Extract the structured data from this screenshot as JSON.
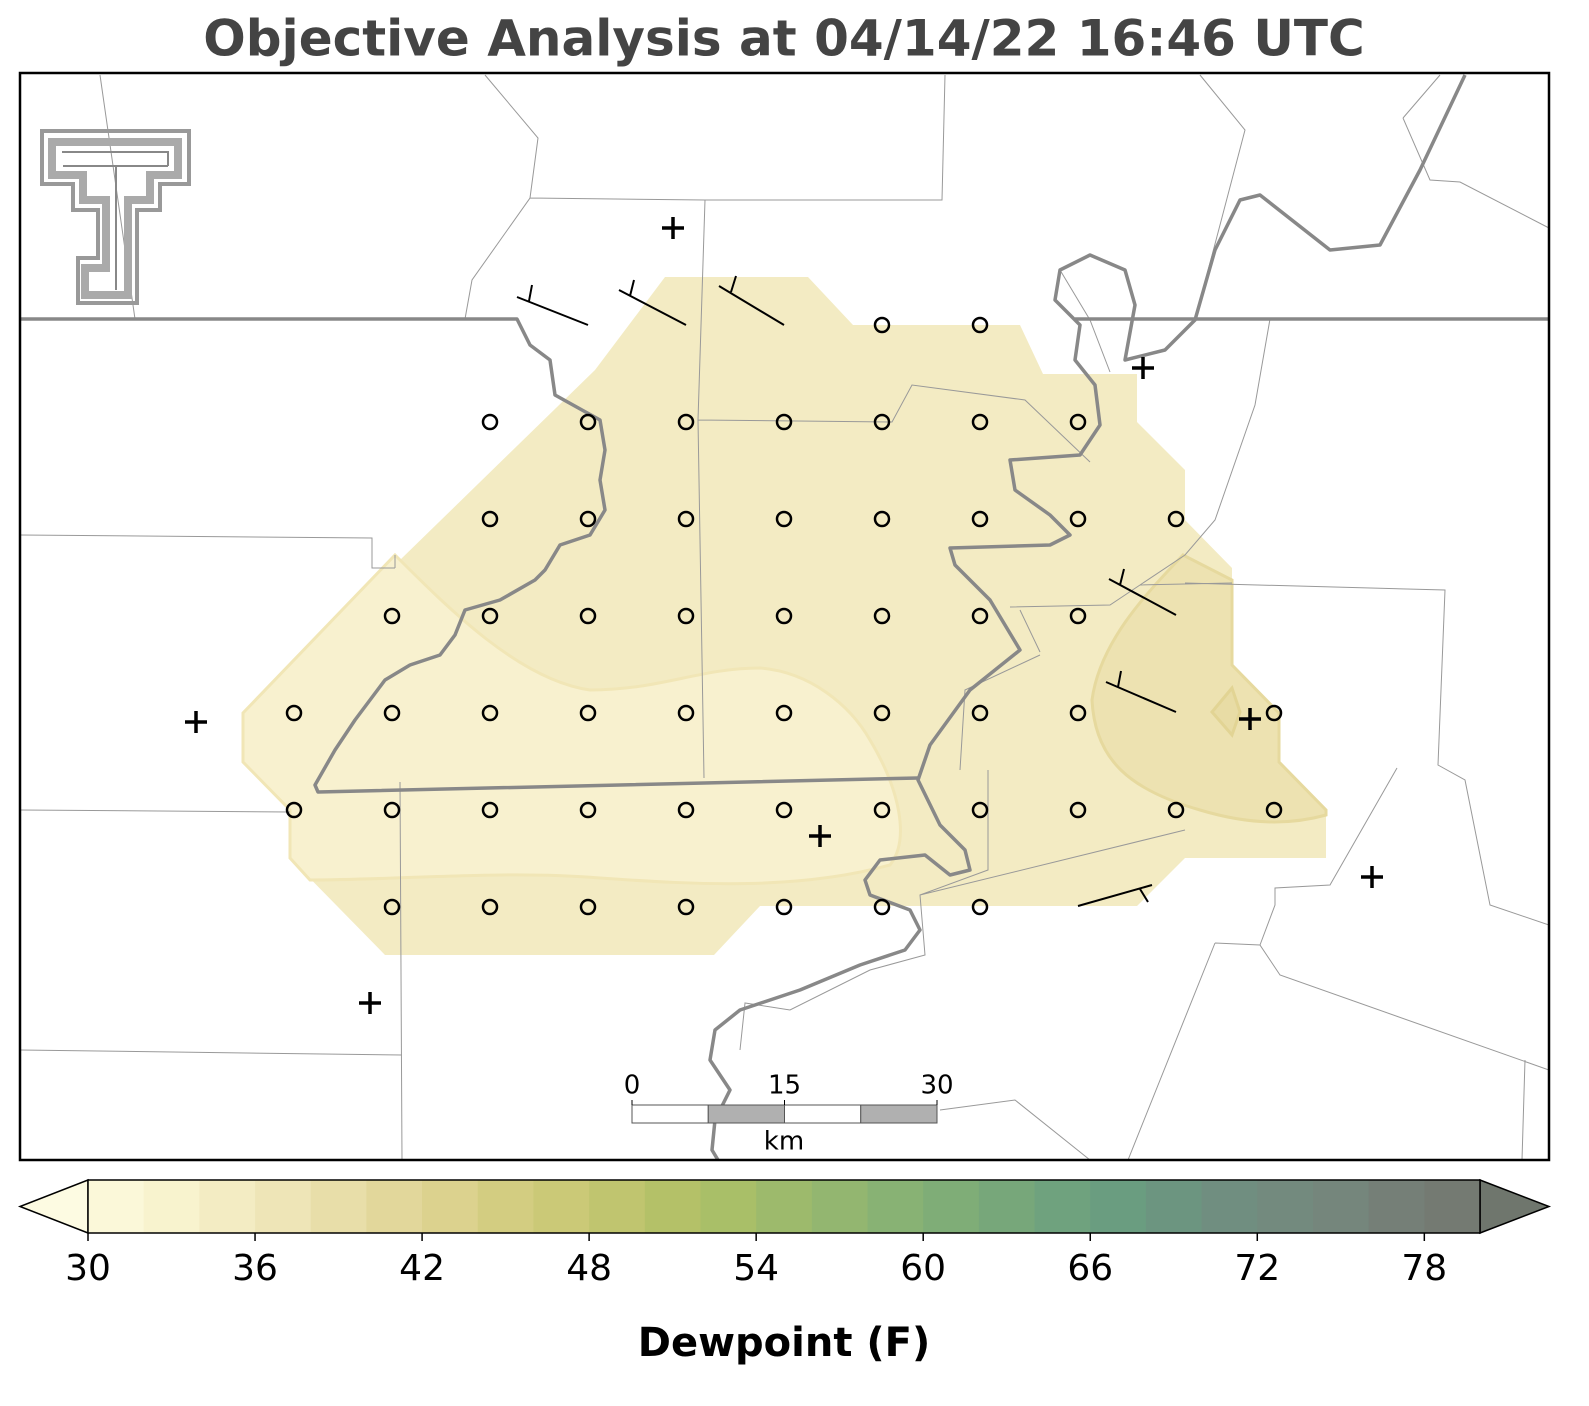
{
  "title": "Objective Analysis at 04/14/22 16:46 UTC",
  "colorbar": {
    "label": "Dewpoint (F)",
    "ticks": [
      30,
      36,
      42,
      48,
      54,
      60,
      66,
      72,
      78
    ],
    "levels": [
      30,
      32,
      34,
      36,
      38,
      40,
      42,
      44,
      46,
      48,
      50,
      52,
      54,
      56,
      58,
      60,
      62,
      64,
      66,
      68,
      70,
      72,
      74,
      76,
      78,
      80
    ],
    "colors": [
      "#fbf8d9",
      "#f8f3ce",
      "#f3ecc3",
      "#eee5b7",
      "#e8dea9",
      "#e2d79b",
      "#dcd28e",
      "#d3cd81",
      "#cbc977",
      "#c0c56f",
      "#b4c168",
      "#a9bf68",
      "#9dba6c",
      "#93b670",
      "#88b274",
      "#7fad77",
      "#77a77a",
      "#6fa27e",
      "#6a9d80",
      "#6c9580",
      "#708e80",
      "#738a7e",
      "#75867c",
      "#757f77",
      "#747a72"
    ],
    "under_color": "#fdfbe2",
    "over_color": "#6f766d"
  },
  "scale_bar": {
    "ticks": [
      0,
      15,
      30
    ],
    "unit": "km"
  }
}
